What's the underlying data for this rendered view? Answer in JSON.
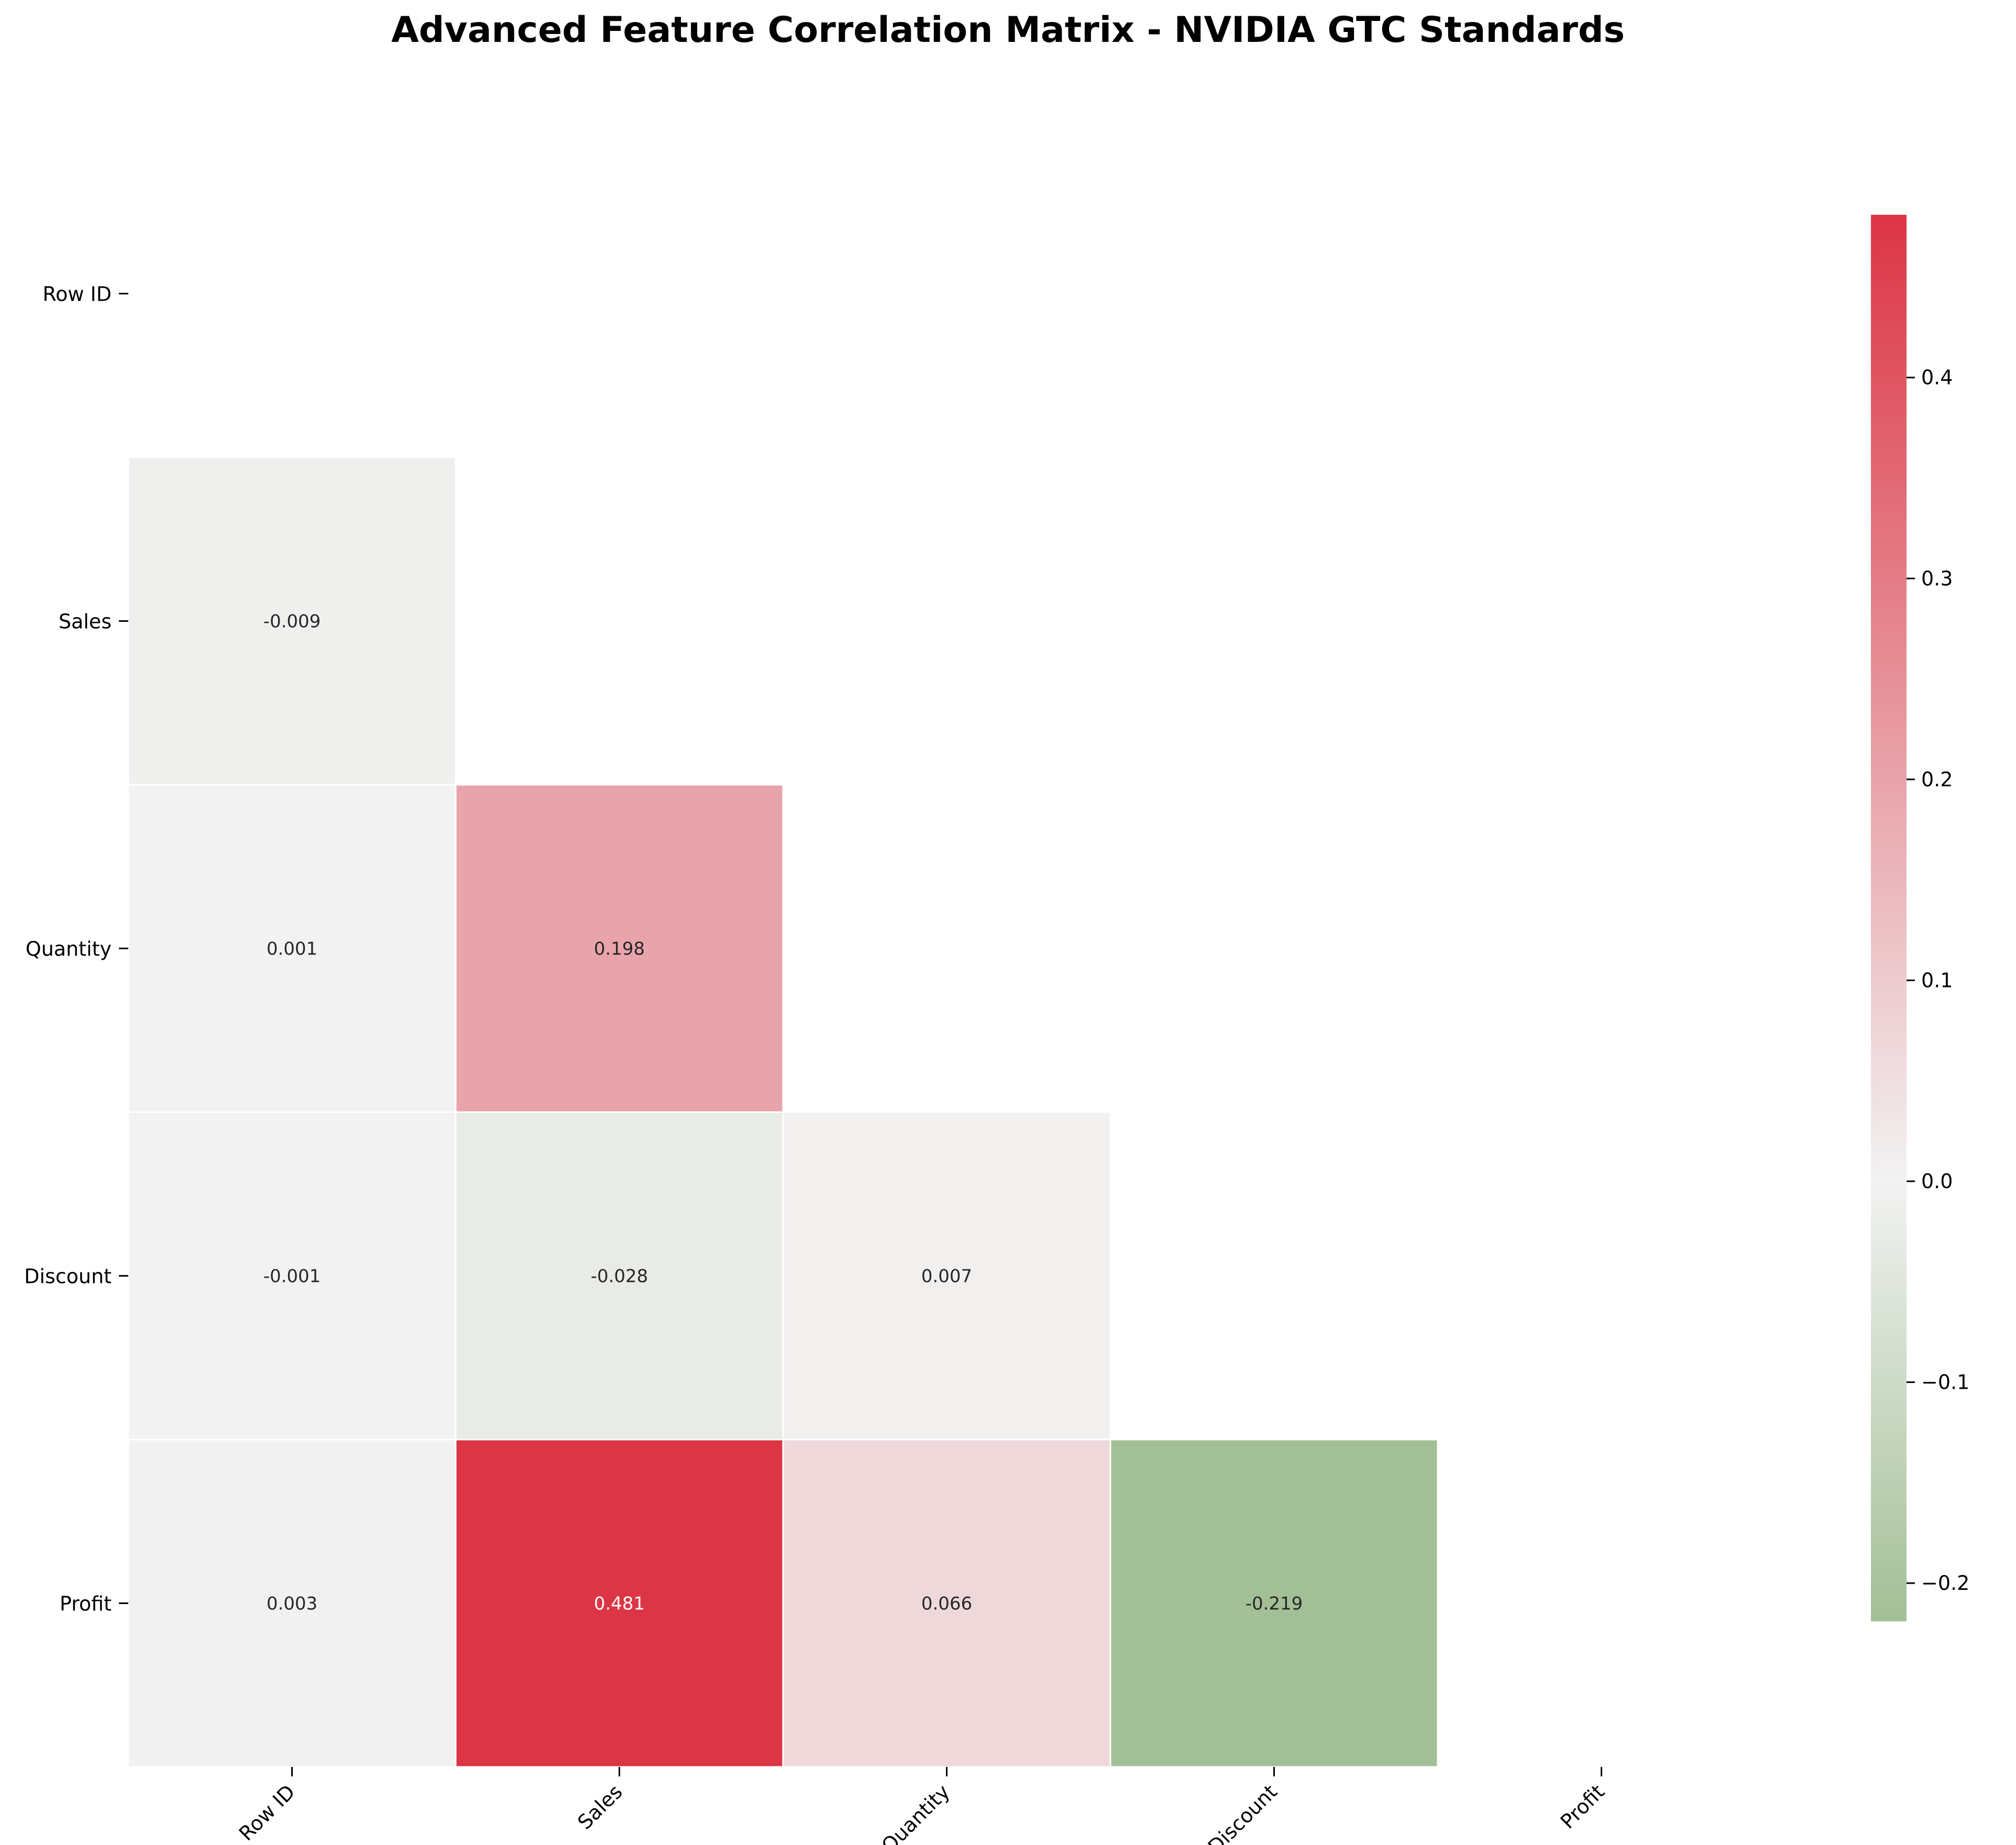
{
  "chart_data": {
    "type": "heatmap",
    "title": "Advanced Feature Correlation Matrix - NVIDIA GTC Standards",
    "row_labels": [
      "Row ID",
      "Sales",
      "Quantity",
      "Discount",
      "Profit"
    ],
    "col_labels": [
      "Row ID",
      "Sales",
      "Quantity",
      "Discount",
      "Profit"
    ],
    "mask": "upper-triangle-including-diagonal",
    "cells": [
      {
        "row": 1,
        "col": 0,
        "value": -0.009,
        "label": "-0.009"
      },
      {
        "row": 2,
        "col": 0,
        "value": 0.001,
        "label": "0.001"
      },
      {
        "row": 2,
        "col": 1,
        "value": 0.198,
        "label": "0.198"
      },
      {
        "row": 3,
        "col": 0,
        "value": -0.001,
        "label": "-0.001"
      },
      {
        "row": 3,
        "col": 1,
        "value": -0.028,
        "label": "-0.028"
      },
      {
        "row": 3,
        "col": 2,
        "value": 0.007,
        "label": "0.007"
      },
      {
        "row": 4,
        "col": 0,
        "value": 0.003,
        "label": "0.003"
      },
      {
        "row": 4,
        "col": 1,
        "value": 0.481,
        "label": "0.481"
      },
      {
        "row": 4,
        "col": 2,
        "value": 0.066,
        "label": "0.066"
      },
      {
        "row": 4,
        "col": 3,
        "value": -0.219,
        "label": "-0.219"
      }
    ],
    "colorbar": {
      "vmin": -0.219,
      "vmax": 0.481,
      "ticks": [
        -0.2,
        -0.1,
        0.0,
        0.1,
        0.2,
        0.3,
        0.4
      ],
      "tick_labels": [
        "−0.2",
        "−0.1",
        "0.0",
        "0.1",
        "0.2",
        "0.3",
        "0.4"
      ],
      "colors": {
        "negative": "#a3bf96",
        "neutral": "#f2f2f2",
        "positive": "#dc3545"
      }
    },
    "grid": false
  }
}
